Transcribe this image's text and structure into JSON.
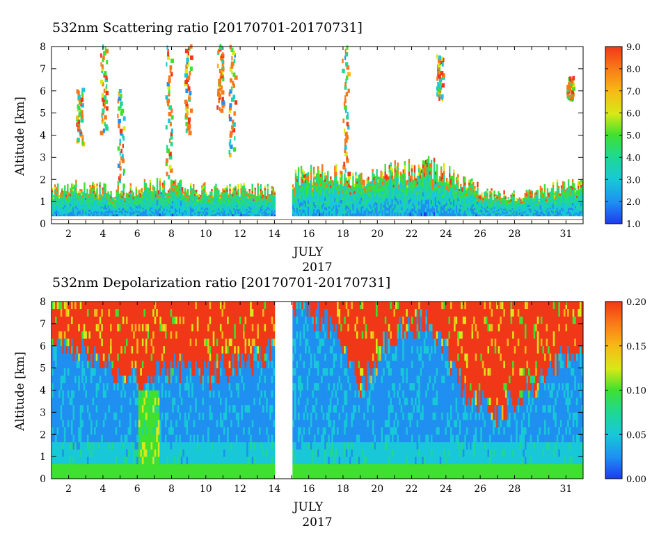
{
  "chart_data": [
    {
      "type": "heatmap",
      "title": "532nm Scattering ratio [20170701-20170731]",
      "xlabel": "JULY",
      "xlabel_year": "2017",
      "ylabel": "Altitude [km]",
      "xlim": [
        1,
        32
      ],
      "ylim": [
        0,
        8
      ],
      "x_ticks": [
        "2",
        "4",
        "6",
        "8",
        "10",
        "12",
        "14",
        "16",
        "18",
        "20",
        "22",
        "24",
        "26",
        "28",
        "31"
      ],
      "y_ticks": [
        "0",
        "1",
        "2",
        "3",
        "4",
        "5",
        "6",
        "7",
        "8"
      ],
      "colorbar": {
        "min": 1.0,
        "max": 9.0,
        "ticks": [
          "1.0",
          "2.0",
          "3.0",
          "4.0",
          "5.0",
          "6.0",
          "7.0",
          "8.0",
          "9.0"
        ]
      },
      "data_gap": [
        14.0,
        15.0
      ],
      "boundary_layer_top_km": [
        {
          "day": 1,
          "value": 1.6
        },
        {
          "day": 3,
          "value": 1.8
        },
        {
          "day": 5,
          "value": 1.5
        },
        {
          "day": 7,
          "value": 1.9
        },
        {
          "day": 9,
          "value": 1.7
        },
        {
          "day": 11,
          "value": 1.6
        },
        {
          "day": 13.5,
          "value": 1.6
        },
        {
          "day": 15.5,
          "value": 2.3
        },
        {
          "day": 17,
          "value": 2.4
        },
        {
          "day": 19,
          "value": 2.2
        },
        {
          "day": 21,
          "value": 2.5
        },
        {
          "day": 23,
          "value": 2.7
        },
        {
          "day": 25,
          "value": 2.0
        },
        {
          "day": 27,
          "value": 1.3
        },
        {
          "day": 29,
          "value": 1.4
        },
        {
          "day": 31.5,
          "value": 2.0
        }
      ],
      "high_clouds": [
        {
          "day": 2.6,
          "bottom_km": 3.5,
          "top_km": 6.0
        },
        {
          "day": 4.0,
          "bottom_km": 4.0,
          "top_km": 8.0
        },
        {
          "day": 5.0,
          "bottom_km": 1.5,
          "top_km": 6.0
        },
        {
          "day": 7.8,
          "bottom_km": 2.0,
          "top_km": 8.0
        },
        {
          "day": 8.9,
          "bottom_km": 4.0,
          "top_km": 8.0
        },
        {
          "day": 10.8,
          "bottom_km": 5.0,
          "top_km": 8.0
        },
        {
          "day": 11.5,
          "bottom_km": 3.0,
          "top_km": 8.0
        },
        {
          "day": 18.1,
          "bottom_km": 2.0,
          "top_km": 8.0
        },
        {
          "day": 23.6,
          "bottom_km": 5.5,
          "top_km": 7.5
        },
        {
          "day": 31.2,
          "bottom_km": 5.5,
          "top_km": 6.5
        }
      ]
    },
    {
      "type": "heatmap",
      "title": "532nm Depolarization ratio [20170701-20170731]",
      "xlabel": "JULY",
      "xlabel_year": "2017",
      "ylabel": "Altitude [km]",
      "xlim": [
        1,
        32
      ],
      "ylim": [
        0,
        8
      ],
      "x_ticks": [
        "2",
        "4",
        "6",
        "8",
        "10",
        "12",
        "14",
        "16",
        "18",
        "20",
        "22",
        "24",
        "26",
        "28",
        "31"
      ],
      "y_ticks": [
        "0",
        "1",
        "2",
        "3",
        "4",
        "5",
        "6",
        "7",
        "8"
      ],
      "colorbar": {
        "min": 0.0,
        "max": 0.2,
        "ticks": [
          "0.00",
          "0.05",
          "0.10",
          "0.15",
          "0.20"
        ]
      },
      "data_gap": [
        14.0,
        15.0
      ],
      "high_depol_base_km": [
        {
          "day": 1,
          "value": 6.0
        },
        {
          "day": 3,
          "value": 5.5
        },
        {
          "day": 5,
          "value": 4.5
        },
        {
          "day": 6,
          "value": 4.2
        },
        {
          "day": 8,
          "value": 5.0
        },
        {
          "day": 10,
          "value": 4.5
        },
        {
          "day": 12,
          "value": 5.0
        },
        {
          "day": 13.5,
          "value": 5.5
        },
        {
          "day": 15.5,
          "value": 7.5
        },
        {
          "day": 17.5,
          "value": 6.5
        },
        {
          "day": 19,
          "value": 4.0
        },
        {
          "day": 21,
          "value": 6.5
        },
        {
          "day": 23,
          "value": 7.0
        },
        {
          "day": 25,
          "value": 4.0
        },
        {
          "day": 27,
          "value": 2.8
        },
        {
          "day": 29,
          "value": 4.0
        },
        {
          "day": 31.5,
          "value": 5.5
        }
      ],
      "dust_layer": {
        "start_day": 6.0,
        "end_day": 7.3,
        "top_km": 4.0,
        "value": 0.1
      }
    }
  ]
}
